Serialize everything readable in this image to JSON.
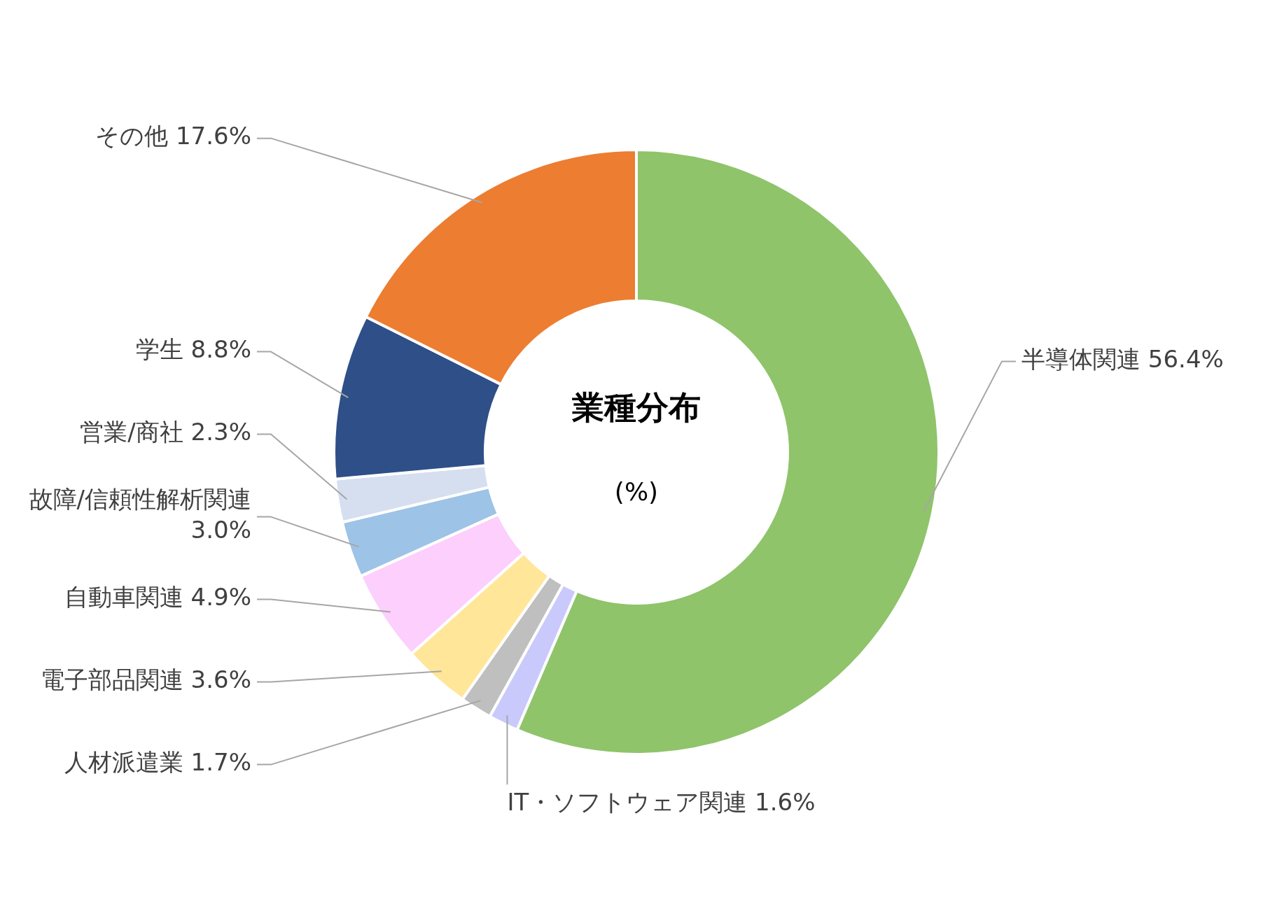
{
  "chart_data": {
    "type": "donut",
    "title": "業種分布",
    "subtitle": "(%)",
    "categories": [
      "半導体関連",
      "IT・ソフトウェア関連",
      "人材派遣業",
      "電子部品関連",
      "自動車関連",
      "故障/信頼性解析関連",
      "営業/商社",
      "学生",
      "その他"
    ],
    "values": [
      56.4,
      1.6,
      1.7,
      3.6,
      4.9,
      3.0,
      2.3,
      8.8,
      17.6
    ],
    "value_labels": [
      "56.4%",
      "1.6%",
      "1.7%",
      "3.6%",
      "4.9%",
      "3.0%",
      "2.3%",
      "8.8%",
      "17.6%"
    ],
    "colors": [
      "#8fc46a",
      "#c9c9fb",
      "#bfbfbf",
      "#ffe699",
      "#fccffc",
      "#9dc3e6",
      "#d5dff0",
      "#2e4f88",
      "#ed7d31"
    ],
    "legend": false
  }
}
